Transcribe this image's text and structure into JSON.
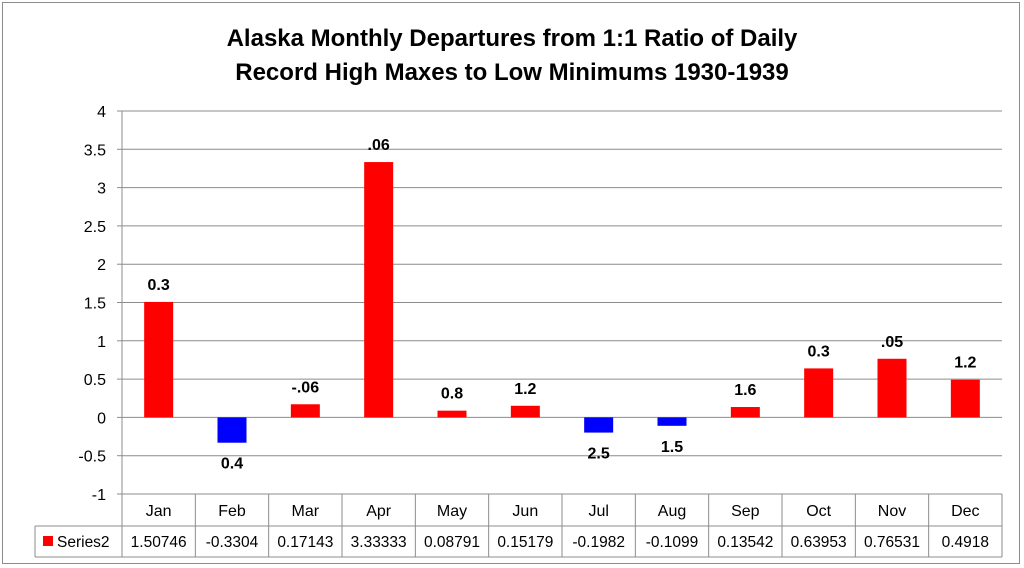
{
  "chart_data": {
    "type": "bar",
    "title_lines": [
      "Alaska Monthly Departures from 1:1 Ratio of Daily",
      "Record High Maxes to Low Minimums 1930-1939"
    ],
    "categories": [
      "Jan",
      "Feb",
      "Mar",
      "Apr",
      "May",
      "Jun",
      "Jul",
      "Aug",
      "Sep",
      "Oct",
      "Nov",
      "Dec"
    ],
    "series": [
      {
        "name": "Series2",
        "legend_color": "#ff0000",
        "values": [
          1.50746,
          -0.3304,
          0.17143,
          3.33333,
          0.08791,
          0.15179,
          -0.1982,
          -0.1099,
          0.13542,
          0.63953,
          0.76531,
          0.4918
        ],
        "table_labels": [
          "1.50746",
          "-0.3304",
          "0.17143",
          "3.33333",
          "0.08791",
          "0.15179",
          "-0.1982",
          "-0.1099",
          "0.13542",
          "0.63953",
          "0.76531",
          "0.4918"
        ]
      }
    ],
    "data_labels": [
      "0.3",
      "0.4",
      "-.06",
      ".06",
      "0.8",
      "1.2",
      "2.5",
      "1.5",
      "1.6",
      "0.3",
      ".05",
      "1.2"
    ],
    "yticks": [
      "-1",
      "-0.5",
      "0",
      "0.5",
      "1",
      "1.5",
      "2",
      "2.5",
      "3",
      "3.5",
      "4"
    ],
    "ylim": [
      -1,
      4
    ],
    "grid": true,
    "data_table": true,
    "colors": {
      "positive": "#ff0000",
      "negative": "#0000ff"
    }
  }
}
